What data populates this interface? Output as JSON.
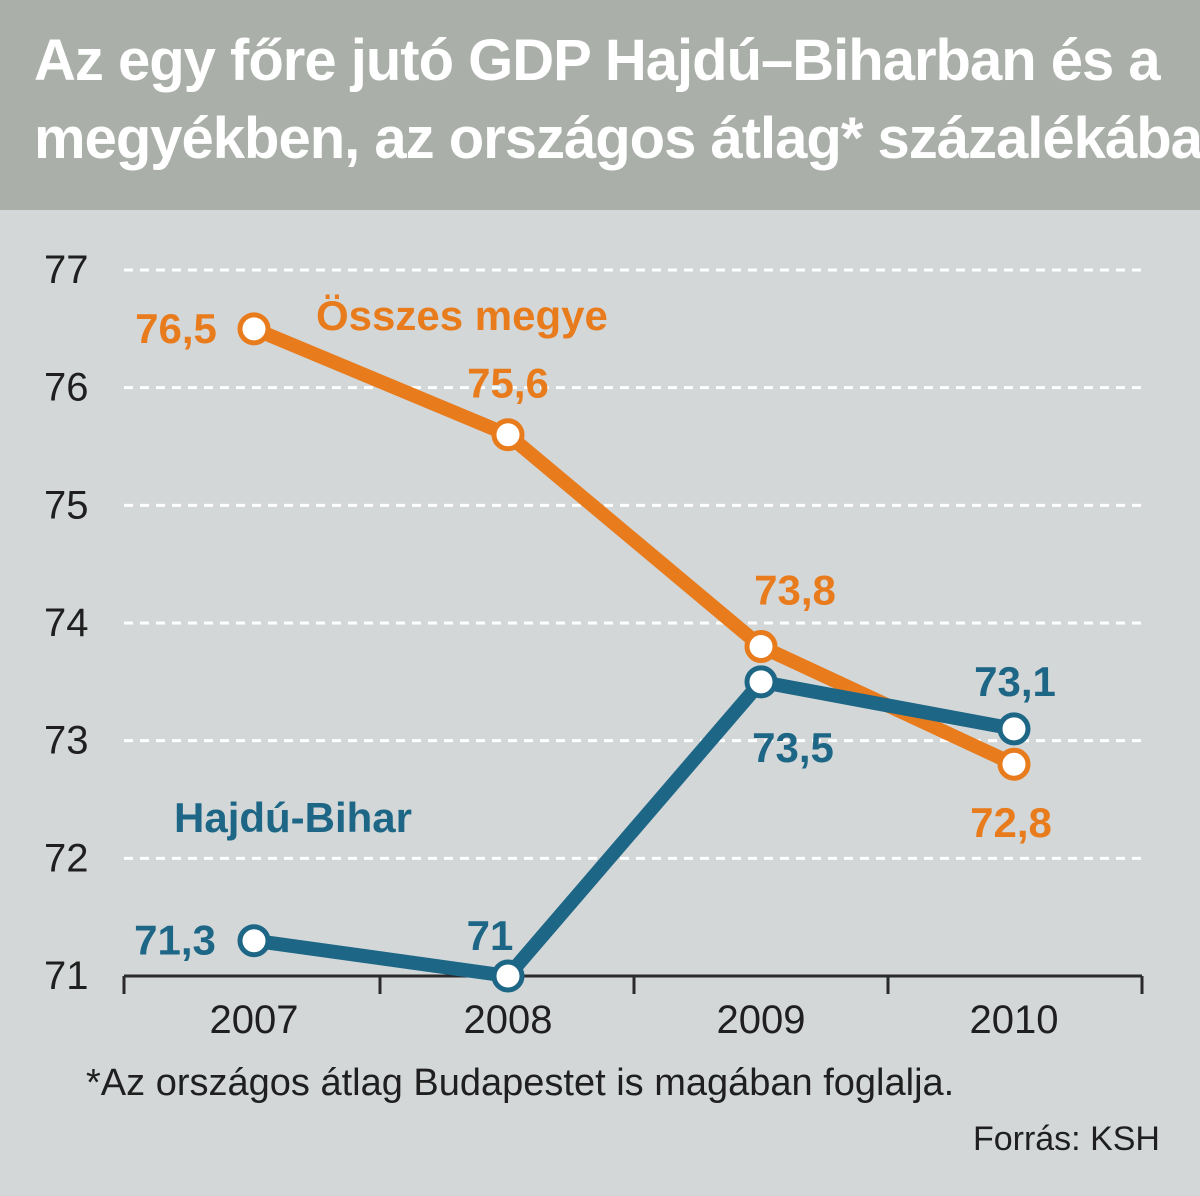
{
  "chart_data": {
    "type": "line",
    "title_lines": [
      "Az egy főre jutó GDP Hajdú–Biharban és a",
      "megyékben, az országos átlag* százalékában"
    ],
    "categories": [
      "2007",
      "2008",
      "2009",
      "2010"
    ],
    "y_ticks": [
      "77",
      "76",
      "75",
      "74",
      "73",
      "72",
      "71"
    ],
    "ylim": [
      71,
      77
    ],
    "grid": true,
    "series": [
      {
        "name": "Összes megye",
        "color": "#e87b1c",
        "values": [
          76.5,
          75.6,
          73.8,
          72.8
        ],
        "labels": [
          "76,5",
          "75,6",
          "73,8",
          "72,8"
        ]
      },
      {
        "name": "Hajdú-Bihar",
        "color": "#1d6686",
        "values": [
          71.3,
          71,
          73.5,
          73.1
        ],
        "labels": [
          "71,3",
          "71",
          "73,5",
          "73,1"
        ]
      }
    ],
    "footnote": "*Az országos átlag Budapestet is magában foglalja.",
    "source": "Forrás: KSH"
  }
}
